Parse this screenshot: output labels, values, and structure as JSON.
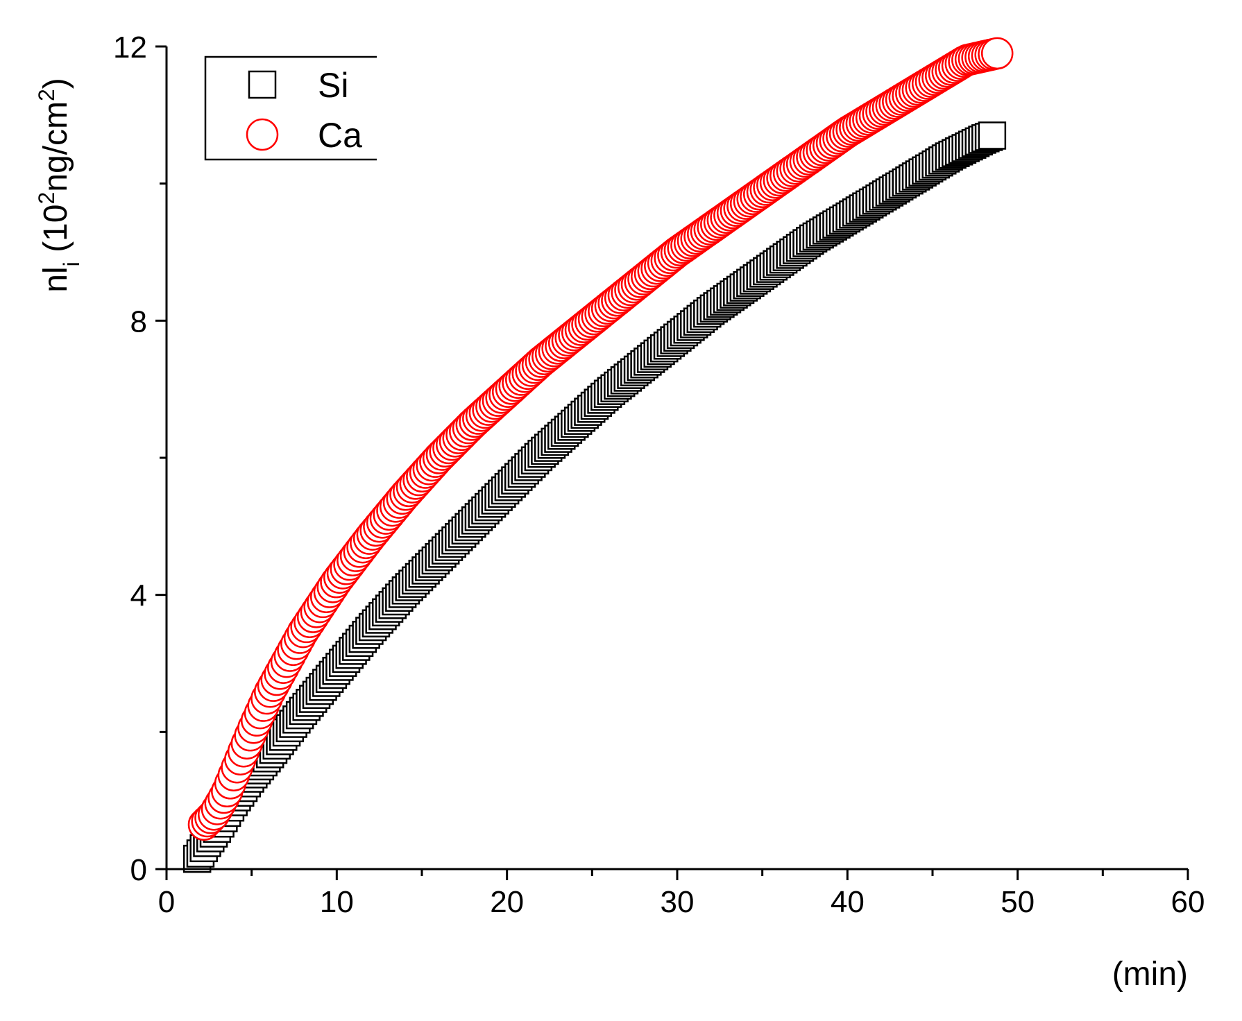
{
  "chart_data": {
    "type": "scatter",
    "title": "",
    "xlabel": "(min)",
    "ylabel": {
      "base": "nl",
      "sub": "i",
      "open": " (10",
      "sup1": "2",
      "mid": "ng/cm",
      "sup2": "2",
      "close": ")"
    },
    "xlim": [
      0,
      60
    ],
    "ylim": [
      0,
      12
    ],
    "x_ticks": [
      "0",
      "10",
      "20",
      "30",
      "40",
      "50",
      "60"
    ],
    "y_ticks": [
      "0",
      "4",
      "8",
      "12"
    ],
    "grid": false,
    "legend_position": "top-left",
    "series": [
      {
        "name": "Si",
        "marker": "square",
        "color": "#000000",
        "x": [
          1.8,
          2.3,
          3.0,
          4.0,
          5.0,
          6.0,
          8.0,
          10.0,
          12.0,
          14.0,
          16.0,
          18.0,
          20.0,
          22.0,
          24.0,
          26.0,
          28.0,
          30.0,
          32.0,
          34.0,
          36.0,
          38.0,
          40.0,
          42.0,
          44.0,
          46.0,
          48.0,
          48.5
        ],
        "y": [
          0.15,
          0.35,
          0.6,
          1.0,
          1.35,
          1.65,
          2.3,
          2.9,
          3.5,
          4.05,
          4.55,
          5.05,
          5.55,
          6.05,
          6.5,
          6.95,
          7.35,
          7.75,
          8.15,
          8.5,
          8.85,
          9.2,
          9.5,
          9.8,
          10.1,
          10.4,
          10.65,
          10.7
        ]
      },
      {
        "name": "Ca",
        "marker": "circle",
        "color": "#ff0000",
        "x": [
          2.2,
          2.8,
          3.5,
          4.0,
          5.0,
          6.0,
          8.0,
          10.0,
          12.0,
          14.0,
          16.0,
          18.0,
          20.0,
          22.0,
          24.0,
          26.0,
          28.0,
          30.0,
          32.0,
          34.0,
          36.0,
          38.0,
          40.0,
          42.0,
          44.0,
          46.0,
          47.0,
          48.8
        ],
        "y": [
          0.65,
          0.8,
          1.1,
          1.4,
          2.0,
          2.55,
          3.45,
          4.2,
          4.85,
          5.45,
          6.0,
          6.5,
          6.95,
          7.4,
          7.8,
          8.2,
          8.6,
          9.0,
          9.35,
          9.7,
          10.05,
          10.4,
          10.75,
          11.05,
          11.35,
          11.65,
          11.8,
          11.9
        ]
      }
    ]
  }
}
